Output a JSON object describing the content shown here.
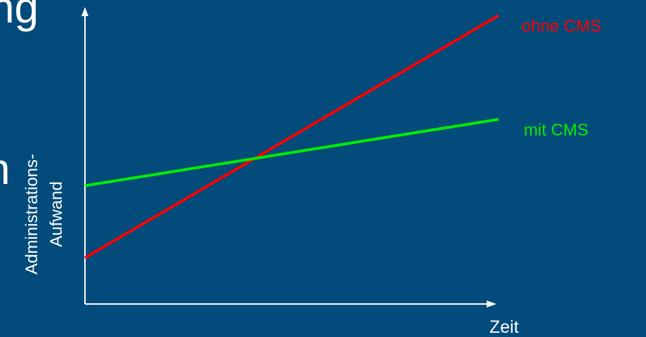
{
  "background_fragments": {
    "top": "ng",
    "middle": "n"
  },
  "chart_data": {
    "type": "line",
    "title": "",
    "xlabel": "Zeit",
    "ylabel_lines": [
      "Administrations-",
      "Aufwand"
    ],
    "xlim": [
      0,
      10
    ],
    "ylim": [
      0,
      10
    ],
    "series": [
      {
        "name": "ohne CMS",
        "color": "#FF0000",
        "x": [
          0,
          10
        ],
        "y": [
          1.6,
          10
        ]
      },
      {
        "name": "mit CMS",
        "color": "#00EE00",
        "x": [
          0,
          10
        ],
        "y": [
          4.1,
          6.4
        ]
      }
    ],
    "grid": false
  },
  "colors": {
    "background": "#024B7A",
    "axis": "#FFFFFF",
    "text": "#FFFFFF"
  }
}
